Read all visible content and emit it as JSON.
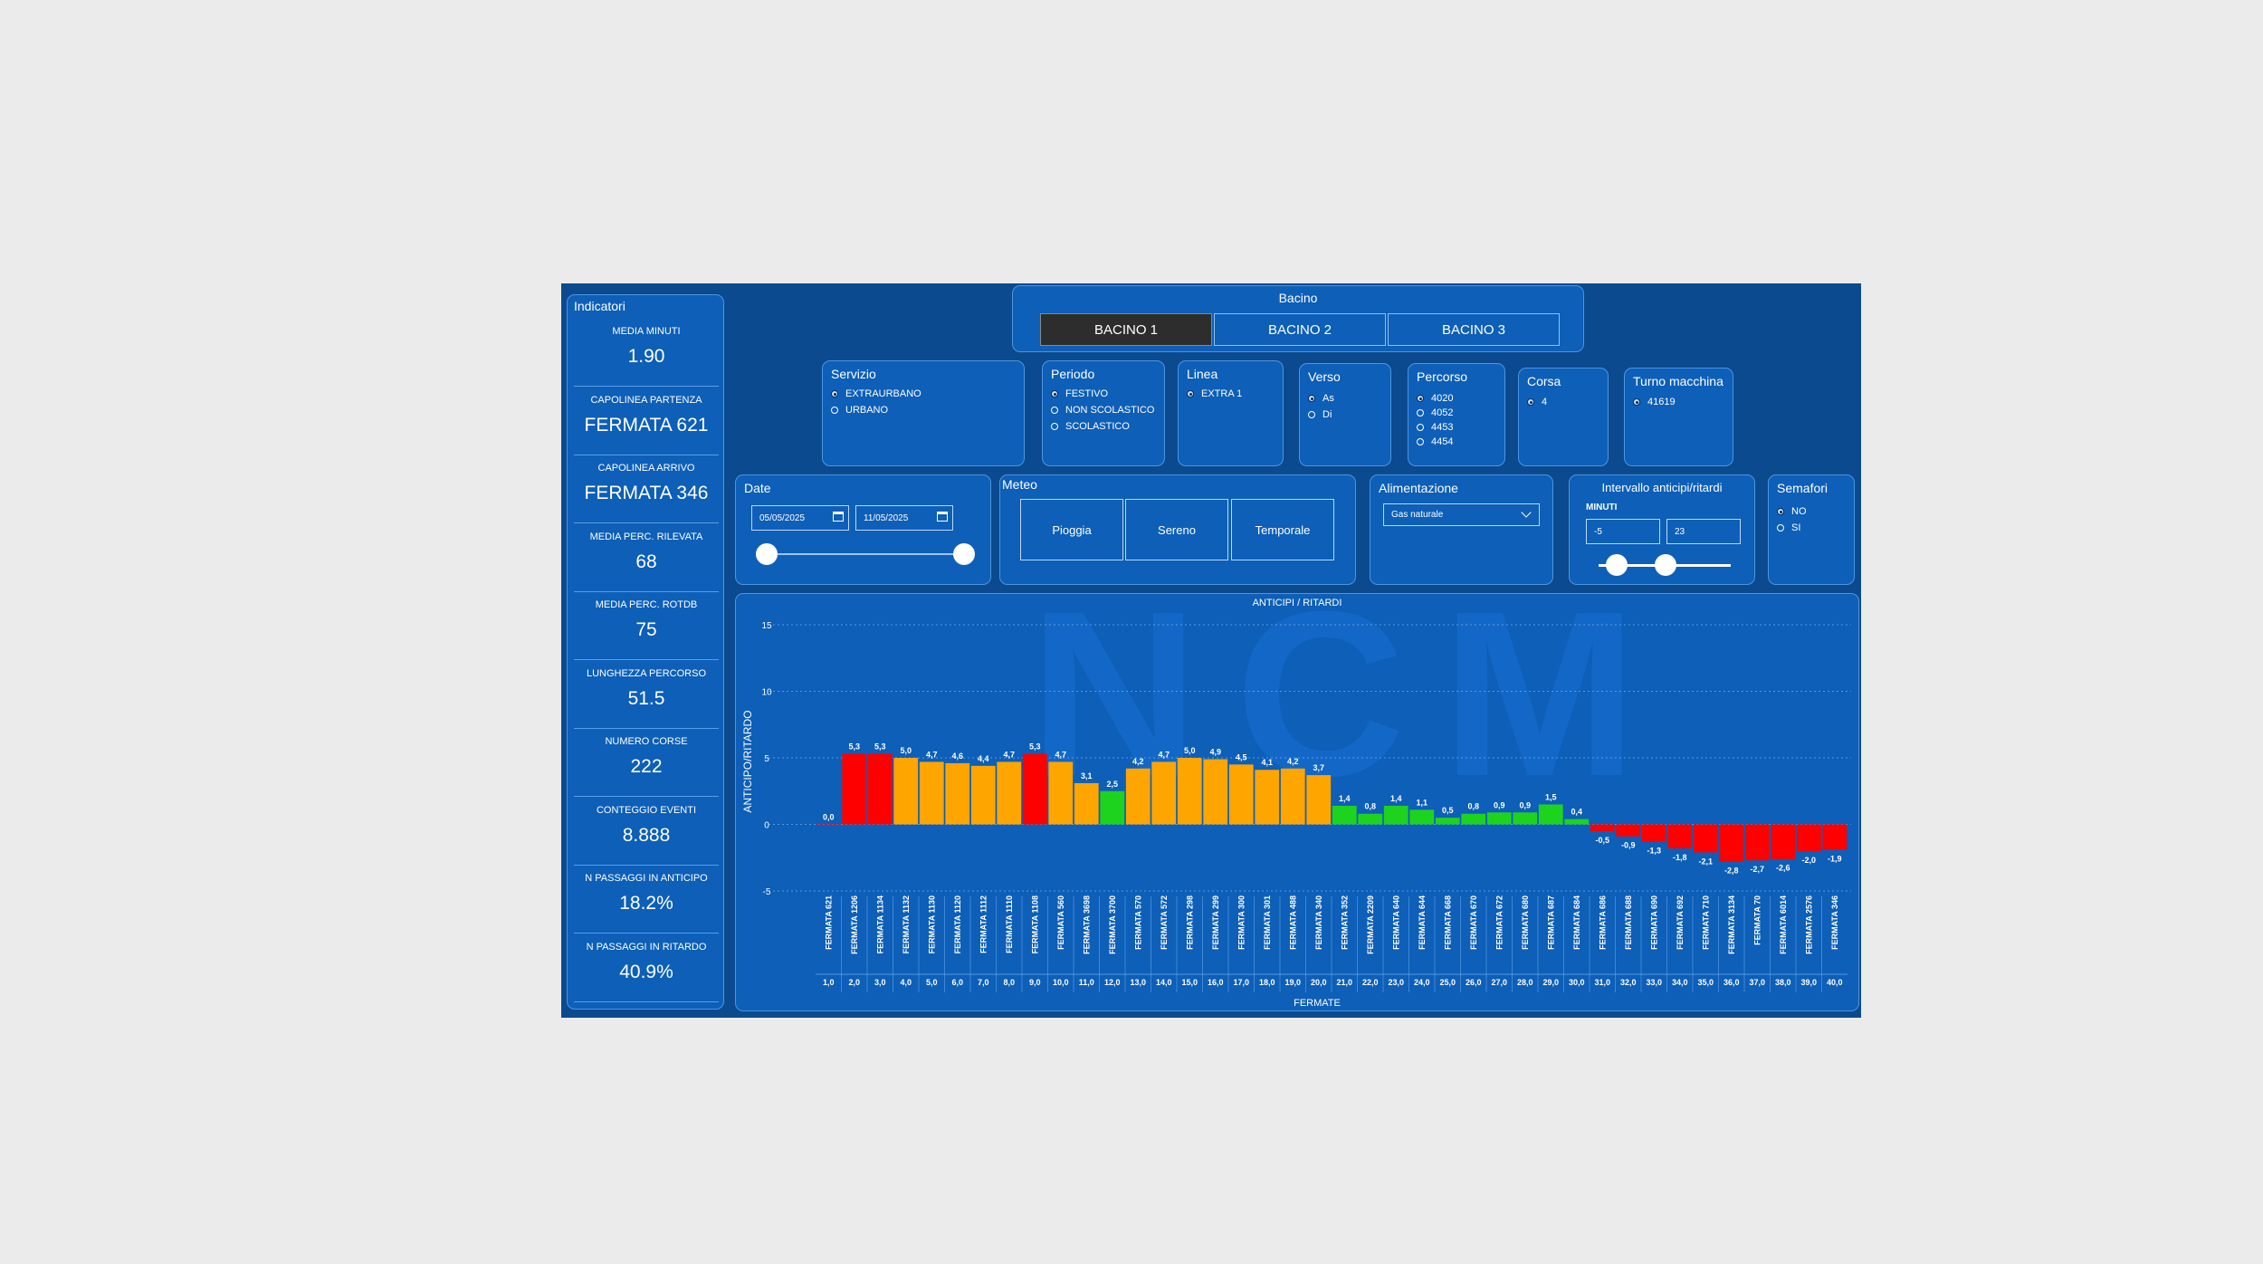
{
  "indicators": {
    "title": "Indicatori",
    "items": [
      {
        "label": "MEDIA MINUTI",
        "value": "1.90"
      },
      {
        "label": "CAPOLINEA PARTENZA",
        "value": "FERMATA 621"
      },
      {
        "label": "CAPOLINEA ARRIVO",
        "value": "FERMATA 346"
      },
      {
        "label": "MEDIA PERC. RILEVATA",
        "value": "68"
      },
      {
        "label": "MEDIA PERC. ROTDB",
        "value": "75"
      },
      {
        "label": "LUNGHEZZA PERCORSO",
        "value": "51.5"
      },
      {
        "label": "NUMERO CORSE",
        "value": "222"
      },
      {
        "label": "CONTEGGIO EVENTI",
        "value": "8.888"
      },
      {
        "label": "N PASSAGGI IN ANTICIPO",
        "value": "18.2%"
      },
      {
        "label": "N PASSAGGI IN RITARDO",
        "value": "40.9%"
      }
    ]
  },
  "bacino": {
    "title": "Bacino",
    "options": [
      "BACINO 1",
      "BACINO 2",
      "BACINO 3"
    ],
    "selected": "BACINO 1"
  },
  "servizio": {
    "title": "Servizio",
    "options": [
      "EXTRAURBANO",
      "URBANO"
    ],
    "selected": "EXTRAURBANO"
  },
  "periodo": {
    "title": "Periodo",
    "options": [
      "FESTIVO",
      "NON SCOLASTICO",
      "SCOLASTICO"
    ],
    "selected": "FESTIVO"
  },
  "linea": {
    "title": "Linea",
    "options": [
      "EXTRA 1"
    ],
    "selected": "EXTRA 1"
  },
  "verso": {
    "title": "Verso",
    "options": [
      "As",
      "Di"
    ],
    "selected": "As"
  },
  "percorso": {
    "title": "Percorso",
    "options": [
      "4020",
      "4052",
      "4453",
      "4454"
    ],
    "selected": "4020"
  },
  "corsa": {
    "title": "Corsa",
    "options": [
      "4"
    ],
    "selected": "4"
  },
  "turno": {
    "title": "Turno macchina",
    "options": [
      "41619"
    ],
    "selected": "41619"
  },
  "date": {
    "title": "Date",
    "start": "05/05/2025",
    "end": "11/05/2025",
    "calendar_icon": "calendar-icon"
  },
  "meteo": {
    "title": "Meteo",
    "options": [
      "Pioggia",
      "Sereno",
      "Temporale"
    ]
  },
  "alimentazione": {
    "title": "Alimentazione",
    "selected": "Gas naturale"
  },
  "intervallo": {
    "title": "Intervallo anticipi/ritardi",
    "unit": "MINUTI",
    "min": "-5",
    "max": "23"
  },
  "semafori": {
    "title": "Semafori",
    "options": [
      "NO",
      "SI"
    ],
    "selected": "NO"
  },
  "watermark": "NCM",
  "colors": {
    "red": "#ff0000",
    "orange": "#ffa500",
    "green": "#1ed31e",
    "background": "#0b4a8e",
    "panel": "#0d5fb8"
  },
  "chart_data": {
    "type": "bar",
    "title": "ANTICIPI / RITARDI",
    "xlabel": "FERMATE",
    "ylabel": "ANTICIPO/RITARDO",
    "ylim": [
      -5,
      15
    ],
    "yticks": [
      -5,
      0,
      5,
      10,
      15
    ],
    "grid": true,
    "categories": [
      "FERMATA 621",
      "FERMATA 1206",
      "FERMATA 1134",
      "FERMATA 1132",
      "FERMATA 1130",
      "FERMATA 1120",
      "FERMATA 1112",
      "FERMATA 1110",
      "FERMATA 1108",
      "FERMATA 560",
      "FERMATA 3698",
      "FERMATA 3700",
      "FERMATA 570",
      "FERMATA 572",
      "FERMATA 298",
      "FERMATA 299",
      "FERMATA 300",
      "FERMATA 301",
      "FERMATA 488",
      "FERMATA 340",
      "FERMATA 352",
      "FERMATA 2209",
      "FERMATA 640",
      "FERMATA 644",
      "FERMATA 668",
      "FERMATA 670",
      "FERMATA 672",
      "FERMATA 680",
      "FERMATA 687",
      "FERMATA 684",
      "FERMATA 686",
      "FERMATA 688",
      "FERMATA 690",
      "FERMATA 692",
      "FERMATA 710",
      "FERMATA 3134",
      "FERMATA 70",
      "FERMATA 6014",
      "FERMATA 2576",
      "FERMATA 346"
    ],
    "positions": [
      "1,0",
      "2,0",
      "3,0",
      "4,0",
      "5,0",
      "6,0",
      "7,0",
      "8,0",
      "9,0",
      "10,0",
      "11,0",
      "12,0",
      "13,0",
      "14,0",
      "15,0",
      "16,0",
      "17,0",
      "18,0",
      "19,0",
      "20,0",
      "21,0",
      "22,0",
      "23,0",
      "24,0",
      "25,0",
      "26,0",
      "27,0",
      "28,0",
      "29,0",
      "30,0",
      "31,0",
      "32,0",
      "33,0",
      "34,0",
      "35,0",
      "36,0",
      "37,0",
      "38,0",
      "39,0",
      "40,0"
    ],
    "values": [
      0.0,
      5.3,
      5.3,
      5.0,
      4.7,
      4.6,
      4.4,
      4.7,
      5.3,
      4.7,
      3.1,
      2.5,
      4.2,
      4.7,
      5.0,
      4.9,
      4.5,
      4.1,
      4.2,
      3.7,
      1.4,
      0.8,
      1.4,
      1.1,
      0.5,
      0.8,
      0.9,
      0.9,
      1.5,
      0.4,
      -0.5,
      -0.9,
      -1.3,
      -1.8,
      -2.1,
      -2.8,
      -2.7,
      -2.6,
      -2.0,
      -1.9
    ],
    "value_labels": [
      "0,0",
      "5,3",
      "5,3",
      "5,0",
      "4,7",
      "4,6",
      "4,4",
      "4,7",
      "5,3",
      "4,7",
      "3,1",
      "2,5",
      "4,2",
      "4,7",
      "5,0",
      "4,9",
      "4,5",
      "4,1",
      "4,2",
      "3,7",
      "1,4",
      "0,8",
      "1,4",
      "1,1",
      "0,5",
      "0,8",
      "0,9",
      "0,9",
      "1,5",
      "0,4",
      "-0,5",
      "-0,9",
      "-1,3",
      "-1,8",
      "-2,1",
      "-2,8",
      "-2,7",
      "-2,6",
      "-2,0",
      "-1,9"
    ],
    "bar_colors": [
      "red",
      "red",
      "red",
      "orange",
      "orange",
      "orange",
      "orange",
      "orange",
      "red",
      "orange",
      "orange",
      "green",
      "orange",
      "orange",
      "orange",
      "orange",
      "orange",
      "orange",
      "orange",
      "orange",
      "green",
      "green",
      "green",
      "green",
      "green",
      "green",
      "green",
      "green",
      "green",
      "green",
      "red",
      "red",
      "red",
      "red",
      "red",
      "red",
      "red",
      "red",
      "red",
      "red"
    ]
  }
}
